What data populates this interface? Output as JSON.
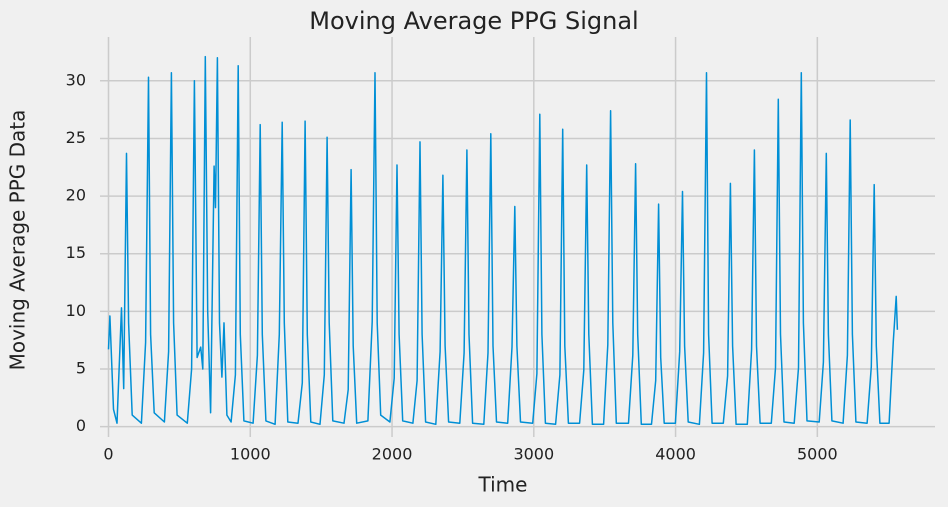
{
  "chart_data": {
    "type": "line",
    "title": "Moving Average PPG Signal",
    "xlabel": "Time",
    "ylabel": "Moving Average PPG Data",
    "x": [
      0,
      10,
      35,
      60,
      92,
      107,
      127,
      142,
      167,
      232,
      262,
      282,
      297,
      322,
      394,
      424,
      444,
      459,
      484,
      556,
      586,
      606,
      625,
      650,
      665,
      683,
      700,
      720,
      745,
      755,
      768,
      783,
      800,
      815,
      835,
      865,
      895,
      915,
      930,
      955,
      1020,
      1050,
      1070,
      1085,
      1110,
      1175,
      1205,
      1225,
      1240,
      1265,
      1337,
      1367,
      1387,
      1402,
      1427,
      1492,
      1522,
      1542,
      1557,
      1582,
      1661,
      1691,
      1711,
      1726,
      1751,
      1830,
      1860,
      1880,
      1895,
      1920,
      1985,
      2015,
      2035,
      2050,
      2075,
      2147,
      2177,
      2197,
      2212,
      2237,
      2309,
      2339,
      2359,
      2374,
      2399,
      2478,
      2508,
      2528,
      2543,
      2568,
      2647,
      2677,
      2697,
      2712,
      2737,
      2816,
      2846,
      2866,
      2881,
      2906,
      2992,
      3022,
      3042,
      3057,
      3082,
      3154,
      3184,
      3204,
      3219,
      3244,
      3323,
      3353,
      3373,
      3388,
      3413,
      3492,
      3522,
      3542,
      3557,
      3582,
      3668,
      3698,
      3718,
      3733,
      3758,
      3830,
      3860,
      3880,
      3895,
      3920,
      3999,
      4029,
      4049,
      4064,
      4089,
      4168,
      4198,
      4218,
      4233,
      4258,
      4337,
      4367,
      4387,
      4402,
      4427,
      4506,
      4536,
      4556,
      4571,
      4596,
      4675,
      4705,
      4725,
      4740,
      4765,
      4837,
      4867,
      4887,
      4902,
      4927,
      5013,
      5043,
      5063,
      5078,
      5103,
      5182,
      5212,
      5232,
      5247,
      5272,
      5351,
      5381,
      5401,
      5416,
      5441,
      5506,
      5536,
      5556,
      5565
    ],
    "series": [
      {
        "color": "#008fd5",
        "values": [
          6.7,
          9.6,
          1.5,
          0.3,
          10.3,
          3.3,
          23.7,
          9,
          1,
          0.3,
          7.3,
          30.3,
          8,
          1.2,
          0.4,
          6.5,
          30.7,
          9,
          1,
          0.3,
          5,
          30,
          6,
          6.9,
          5,
          32.1,
          10,
          1.2,
          22.6,
          19,
          32,
          9,
          4.3,
          9,
          1,
          0.4,
          4.5,
          31.3,
          8,
          0.5,
          0.3,
          6.2,
          26.2,
          8,
          0.5,
          0.2,
          8,
          26.4,
          9,
          0.4,
          0.3,
          3.8,
          26.5,
          8,
          0.4,
          0.2,
          4.5,
          25.1,
          9,
          0.5,
          0.3,
          3.2,
          22.3,
          7,
          0.3,
          0.5,
          9.1,
          30.7,
          9,
          1,
          0.4,
          4.2,
          22.7,
          8,
          0.5,
          0.3,
          4,
          24.7,
          8,
          0.4,
          0.2,
          6.5,
          21.8,
          7,
          0.4,
          0.3,
          6.4,
          24,
          8,
          0.3,
          0.2,
          6.4,
          25.4,
          7,
          0.4,
          0.3,
          6.9,
          19.1,
          7,
          0.4,
          0.3,
          4.6,
          27.1,
          8,
          0.3,
          0.2,
          4.5,
          25.8,
          7,
          0.3,
          0.3,
          4.9,
          22.7,
          8,
          0.2,
          0.2,
          7.1,
          27.4,
          9,
          0.3,
          0.3,
          6.2,
          22.8,
          8,
          0.2,
          0.2,
          4,
          19.3,
          6,
          0.3,
          0.3,
          6.5,
          20.4,
          7,
          0.4,
          0.2,
          6.4,
          30.7,
          8,
          0.3,
          0.3,
          4.4,
          21.1,
          7,
          0.2,
          0.2,
          6.7,
          24,
          7,
          0.3,
          0.3,
          5.1,
          28.4,
          8,
          0.4,
          0.3,
          5.1,
          30.7,
          9,
          0.5,
          0.4,
          5.6,
          23.7,
          8,
          0.5,
          0.3,
          6.2,
          26.6,
          8,
          0.4,
          0.3,
          5.2,
          21,
          7,
          0.3,
          0.3,
          7.4,
          11.3,
          8.4
        ]
      }
    ],
    "xlim": [
      -60,
      5830
    ],
    "ylim": [
      -0.9,
      33.8
    ],
    "xticks": [
      0,
      1000,
      2000,
      3000,
      4000,
      5000
    ],
    "yticks": [
      0,
      5,
      10,
      15,
      20,
      25,
      30
    ],
    "grid": true
  }
}
